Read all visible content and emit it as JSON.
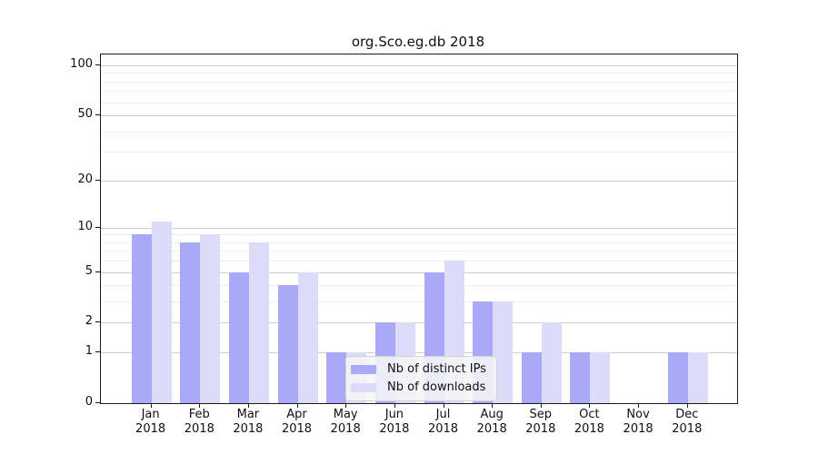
{
  "title": "org.Sco.eg.db 2018",
  "chart_data": {
    "type": "bar",
    "title": "org.Sco.eg.db 2018",
    "categories": [
      "Jan",
      "Feb",
      "Mar",
      "Apr",
      "May",
      "Jun",
      "Jul",
      "Aug",
      "Sep",
      "Oct",
      "Nov",
      "Dec"
    ],
    "year_label": "2018",
    "series": [
      {
        "name": "Nb of distinct IPs",
        "key": "distinct-ips",
        "color": "#a9a9f8",
        "values": [
          9,
          8,
          5,
          4,
          1,
          2,
          5,
          3,
          1,
          1,
          0,
          1
        ]
      },
      {
        "name": "Nb of downloads",
        "key": "downloads",
        "color": "#dcdcf9",
        "values": [
          11,
          9,
          8,
          5,
          1,
          2,
          6,
          3,
          2,
          1,
          0,
          1
        ]
      }
    ],
    "y_scale": "log1p",
    "ylim": [
      0,
      100
    ],
    "y_ticks": [
      100,
      50,
      20,
      10,
      5,
      2,
      1,
      0
    ],
    "y_minor_gridlines": [
      3,
      4,
      6,
      7,
      8,
      9,
      30,
      40,
      60,
      70,
      80,
      90
    ],
    "grid": "horizontal-only",
    "legend_position": "inside-bottom-center",
    "xlabel": "",
    "ylabel": ""
  },
  "colors": {
    "background": "#ffffff",
    "axis": "#1a1a1a",
    "major_gridline": "#cdcdcd",
    "minor_gridline": "#ededed",
    "bar_distinct_ips": "#a9a9f8",
    "bar_downloads": "#dcdcf9",
    "legend_background": "#f5f5f5",
    "legend_border": "#d4d4d4",
    "text": "#111111"
  }
}
